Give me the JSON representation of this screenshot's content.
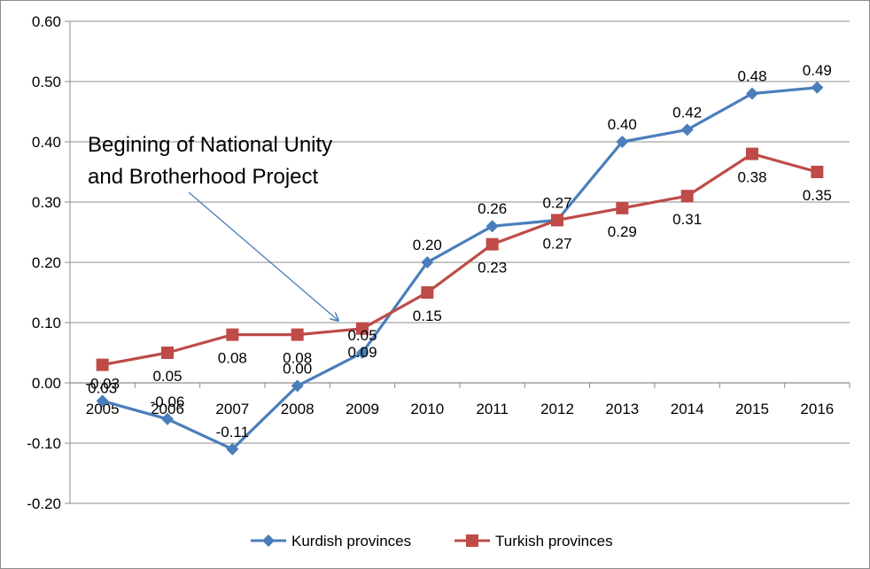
{
  "chart_data": {
    "type": "line",
    "title": "",
    "xlabel": "",
    "ylabel": "",
    "categories": [
      "2005",
      "2006",
      "2007",
      "2008",
      "2009",
      "2010",
      "2011",
      "2012",
      "2013",
      "2014",
      "2015",
      "2016"
    ],
    "y_ticks": [
      "0.60",
      "0.50",
      "0.40",
      "0.30",
      "0.20",
      "0.10",
      "0.00",
      "-0.10",
      "-0.20"
    ],
    "ylim": [
      -0.2,
      0.6
    ],
    "grid": "horizontal",
    "legend_position": "bottom",
    "series": [
      {
        "name": "Kurdish provinces",
        "color": "#4a7ebb",
        "marker": "diamond",
        "values": [
          -0.03,
          -0.06,
          -0.11,
          -0.005,
          0.05,
          0.2,
          0.26,
          0.27,
          0.4,
          0.42,
          0.48,
          0.49
        ],
        "labels": [
          "-0.03",
          "-0.06",
          "-0.11",
          "0.00",
          "0.05",
          "0.20",
          "0.26",
          "0.27",
          "0.40",
          "0.42",
          "0.48",
          "0.49"
        ]
      },
      {
        "name": "Turkish provinces",
        "color": "#be4b48",
        "marker": "square",
        "values": [
          0.03,
          0.05,
          0.08,
          0.08,
          0.09,
          0.15,
          0.23,
          0.27,
          0.29,
          0.31,
          0.38,
          0.35
        ],
        "labels": [
          "0.03",
          "0.05",
          "0.08",
          "0.08",
          "0.09",
          "0.15",
          "0.23",
          "0.27",
          "0.29",
          "0.31",
          "0.38",
          "0.35"
        ]
      }
    ],
    "annotation": {
      "lines": [
        "Begining of National Unity",
        "and Brotherhood Project"
      ],
      "points_to": "2009"
    }
  }
}
